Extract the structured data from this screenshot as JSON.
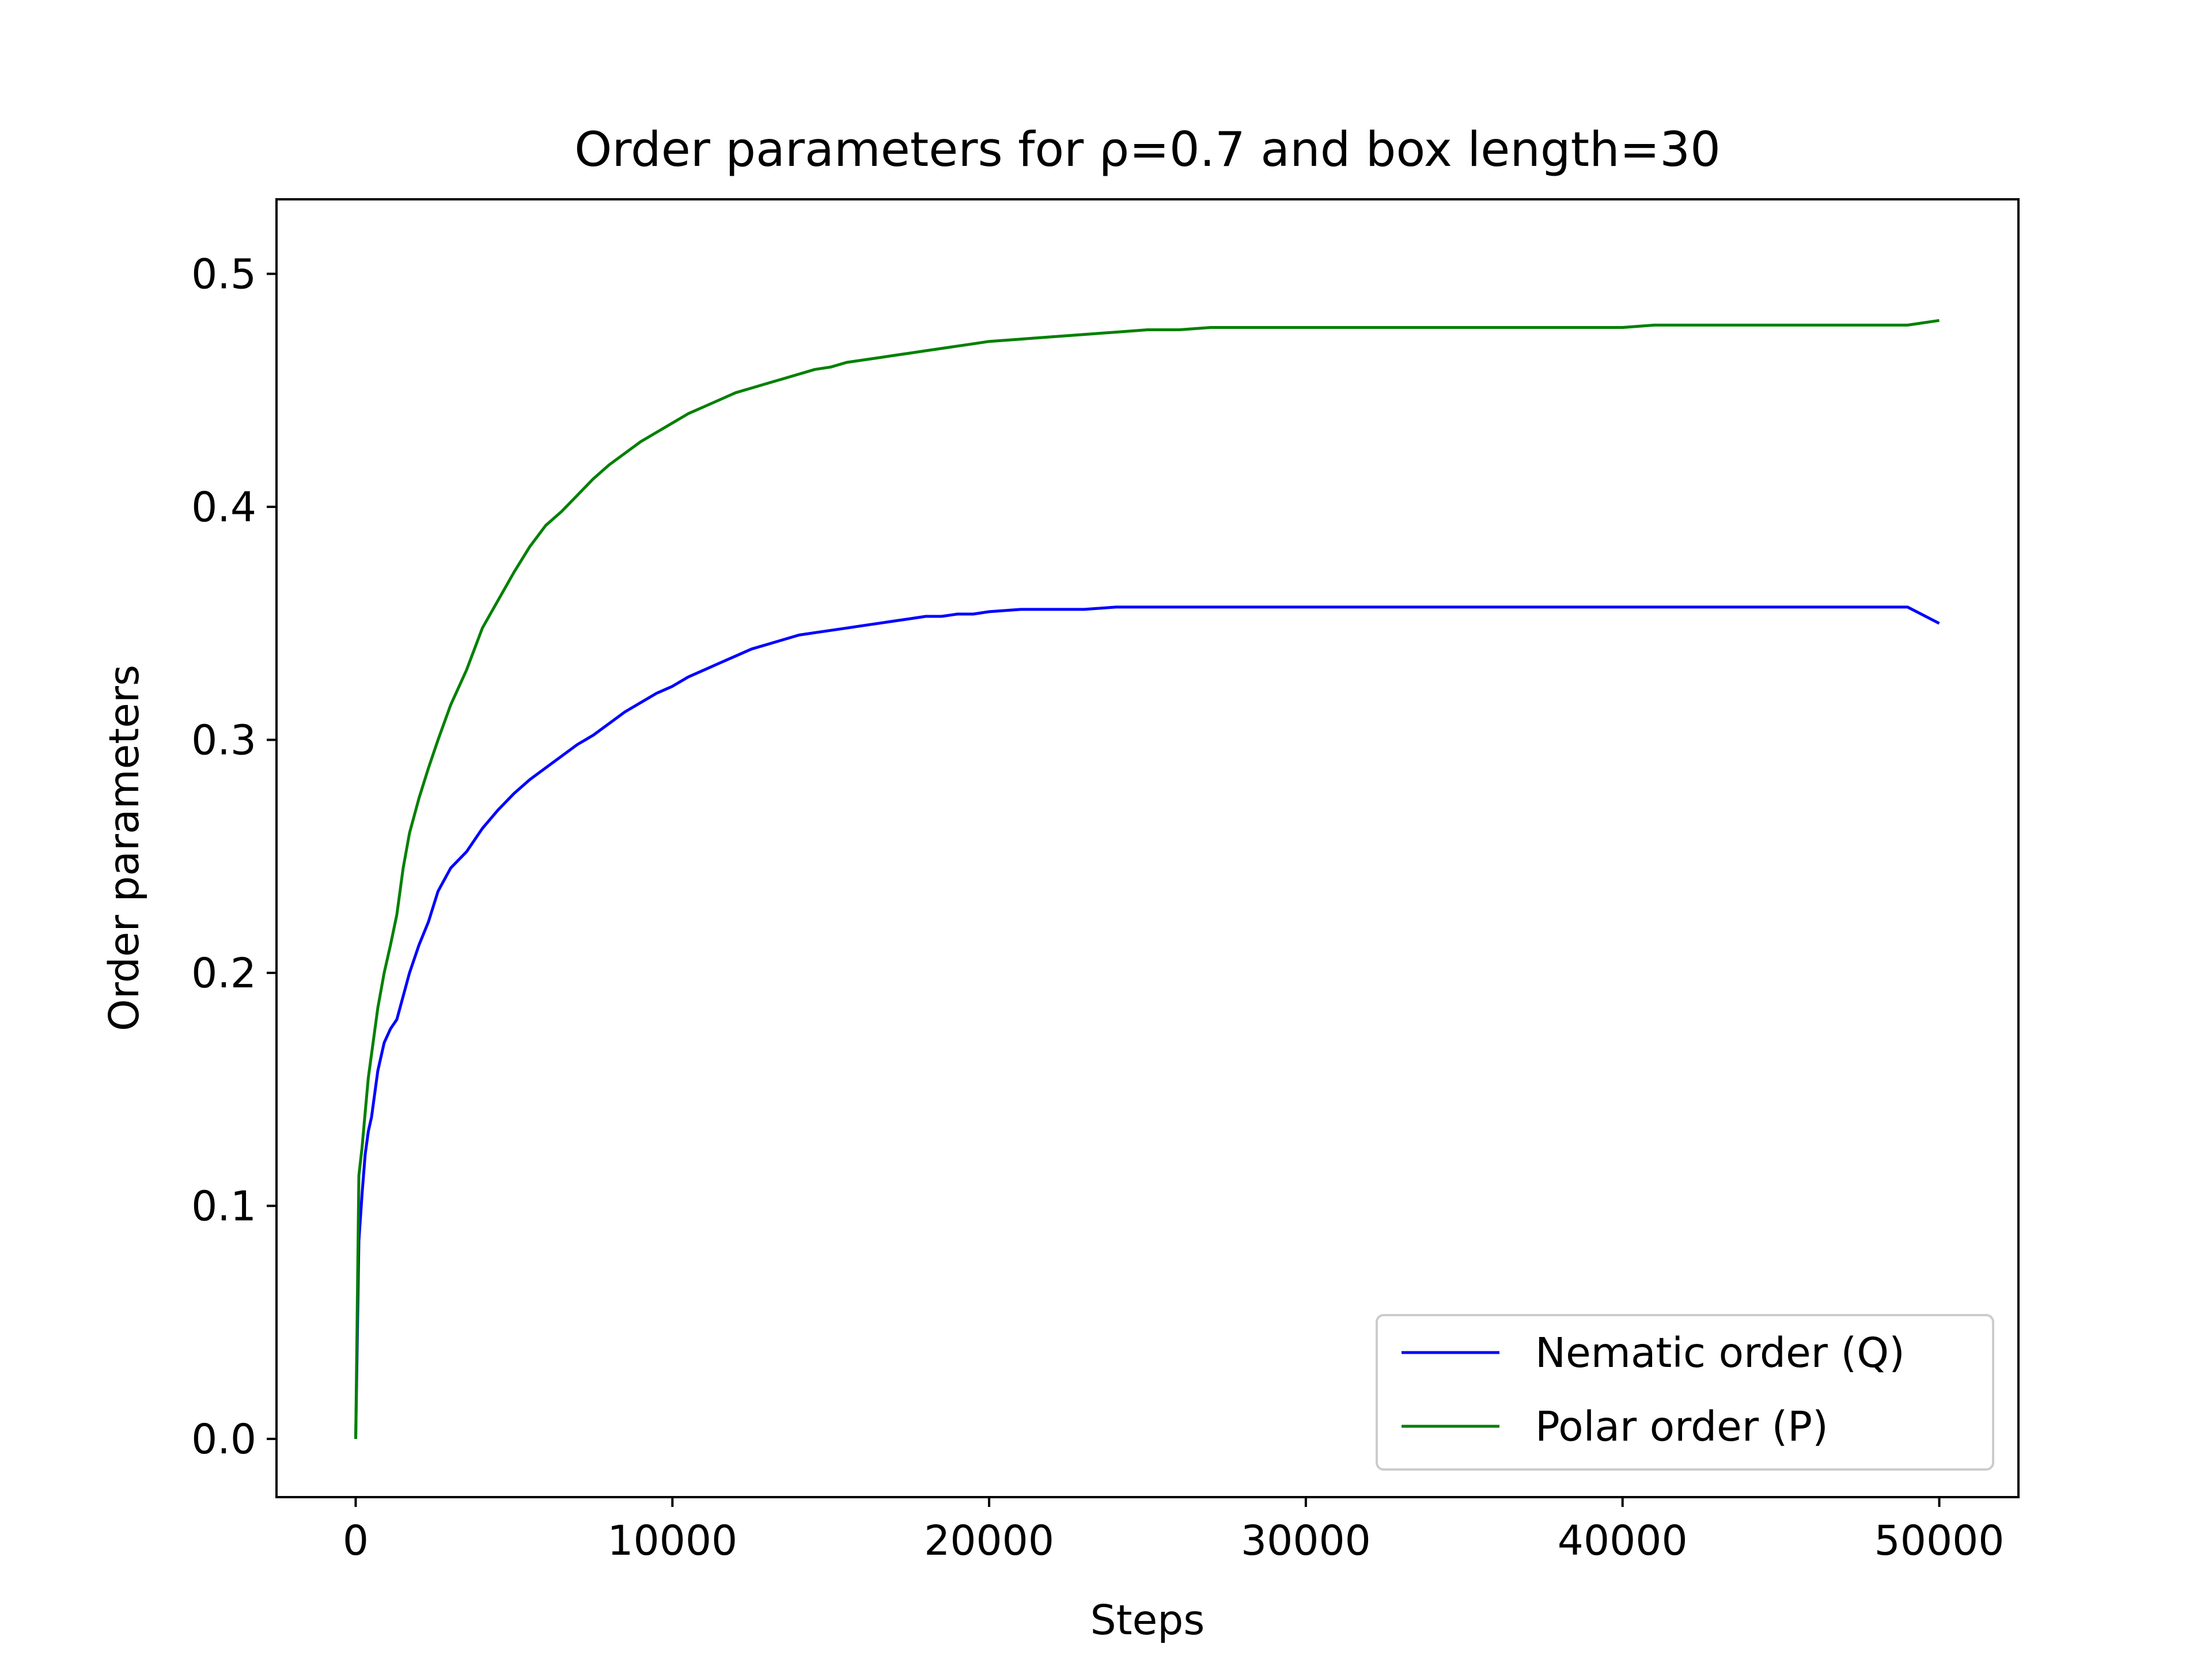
{
  "chart_data": {
    "type": "line",
    "title": "Order parameters for ρ=0.7 and box length=30",
    "xlabel": "Steps",
    "ylabel": "Order parameters",
    "xlim": [
      -2500,
      52500
    ],
    "ylim": [
      -0.025,
      0.532
    ],
    "xticks": [
      0,
      10000,
      20000,
      30000,
      40000,
      50000
    ],
    "xtick_labels": [
      "0",
      "10000",
      "20000",
      "30000",
      "40000",
      "50000"
    ],
    "yticks": [
      0.0,
      0.1,
      0.2,
      0.3,
      0.4,
      0.5
    ],
    "ytick_labels": [
      "0.0",
      "0.1",
      "0.2",
      "0.3",
      "0.4",
      "0.5"
    ],
    "grid": false,
    "legend_position": "lower right",
    "series": [
      {
        "name": "Nematic order (Q)",
        "color": "#0000ff",
        "x": [
          0,
          100,
          200,
          300,
          400,
          500,
          700,
          900,
          1100,
          1300,
          1500,
          1700,
          2000,
          2300,
          2600,
          3000,
          3500,
          4000,
          4500,
          5000,
          5500,
          6000,
          6500,
          7000,
          7500,
          8000,
          8500,
          9000,
          9500,
          10000,
          10500,
          11000,
          11500,
          12000,
          12500,
          13000,
          13500,
          14000,
          14500,
          15000,
          15500,
          16000,
          16500,
          17000,
          17500,
          18000,
          18500,
          19000,
          19500,
          20000,
          21000,
          22000,
          23000,
          24000,
          25000,
          26000,
          27000,
          28000,
          29000,
          30000,
          31000,
          32000,
          33000,
          34000,
          35000,
          36000,
          37000,
          38000,
          39000,
          40000,
          41000,
          42000,
          43000,
          44000,
          45000,
          46000,
          47000,
          48000,
          49000,
          50000
        ],
        "y": [
          0.0,
          0.085,
          0.105,
          0.122,
          0.132,
          0.138,
          0.158,
          0.17,
          0.176,
          0.18,
          0.19,
          0.2,
          0.212,
          0.222,
          0.235,
          0.245,
          0.252,
          0.262,
          0.27,
          0.277,
          0.283,
          0.288,
          0.293,
          0.298,
          0.302,
          0.307,
          0.312,
          0.316,
          0.32,
          0.323,
          0.327,
          0.33,
          0.333,
          0.336,
          0.339,
          0.341,
          0.343,
          0.345,
          0.346,
          0.347,
          0.348,
          0.349,
          0.35,
          0.351,
          0.352,
          0.353,
          0.353,
          0.354,
          0.354,
          0.355,
          0.356,
          0.356,
          0.356,
          0.357,
          0.357,
          0.357,
          0.357,
          0.357,
          0.357,
          0.357,
          0.357,
          0.357,
          0.357,
          0.357,
          0.357,
          0.357,
          0.357,
          0.357,
          0.357,
          0.357,
          0.357,
          0.357,
          0.357,
          0.357,
          0.357,
          0.357,
          0.357,
          0.357,
          0.357,
          0.35
        ]
      },
      {
        "name": "Polar order (P)",
        "color": "#008000",
        "x": [
          0,
          100,
          200,
          300,
          400,
          500,
          700,
          900,
          1100,
          1300,
          1500,
          1700,
          2000,
          2300,
          2600,
          3000,
          3500,
          4000,
          4500,
          5000,
          5500,
          6000,
          6500,
          7000,
          7500,
          8000,
          8500,
          9000,
          9500,
          10000,
          10500,
          11000,
          11500,
          12000,
          12500,
          13000,
          13500,
          14000,
          14500,
          15000,
          15500,
          16000,
          16500,
          17000,
          17500,
          18000,
          18500,
          19000,
          19500,
          20000,
          21000,
          22000,
          23000,
          24000,
          25000,
          26000,
          27000,
          28000,
          29000,
          30000,
          31000,
          32000,
          33000,
          34000,
          35000,
          36000,
          37000,
          38000,
          39000,
          40000,
          41000,
          42000,
          43000,
          44000,
          45000,
          46000,
          47000,
          48000,
          49000,
          50000
        ],
        "y": [
          0.0,
          0.113,
          0.125,
          0.14,
          0.155,
          0.165,
          0.185,
          0.2,
          0.212,
          0.225,
          0.245,
          0.26,
          0.275,
          0.288,
          0.3,
          0.315,
          0.33,
          0.348,
          0.36,
          0.372,
          0.383,
          0.392,
          0.398,
          0.405,
          0.412,
          0.418,
          0.423,
          0.428,
          0.432,
          0.436,
          0.44,
          0.443,
          0.446,
          0.449,
          0.451,
          0.453,
          0.455,
          0.457,
          0.459,
          0.46,
          0.462,
          0.463,
          0.464,
          0.465,
          0.466,
          0.467,
          0.468,
          0.469,
          0.47,
          0.471,
          0.472,
          0.473,
          0.474,
          0.475,
          0.476,
          0.476,
          0.477,
          0.477,
          0.477,
          0.477,
          0.477,
          0.477,
          0.477,
          0.477,
          0.477,
          0.477,
          0.477,
          0.477,
          0.477,
          0.477,
          0.478,
          0.478,
          0.478,
          0.478,
          0.478,
          0.478,
          0.478,
          0.478,
          0.478,
          0.48
        ]
      }
    ]
  }
}
